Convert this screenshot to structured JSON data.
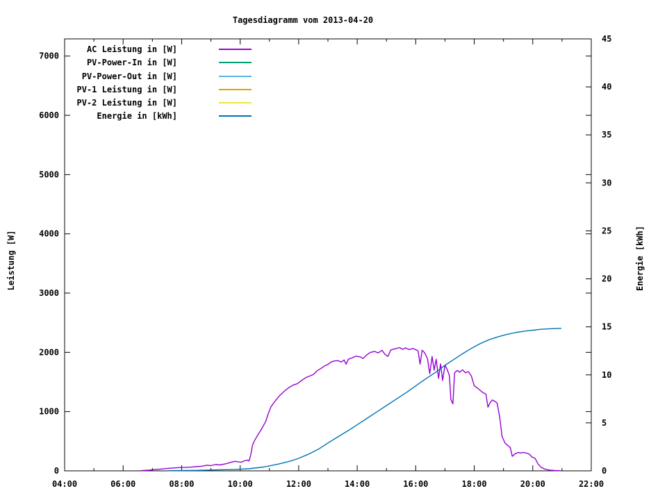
{
  "chart_data": {
    "type": "line",
    "title": "Tagesdiagramm vom 2013-04-20",
    "ylabel": "Leistung [W]",
    "y2label": "Energie [kWh]",
    "xrange": [
      4,
      22
    ],
    "ylim": [
      0,
      7290
    ],
    "y2lim": [
      0,
      45
    ],
    "grid": false,
    "legend_position": "top-left",
    "background": "#ffffff",
    "border_color": "#000000",
    "x_major_ticks": [
      {
        "t": 4,
        "label": "04:00"
      },
      {
        "t": 6,
        "label": "06:00"
      },
      {
        "t": 8,
        "label": "08:00"
      },
      {
        "t": 10,
        "label": "10:00"
      },
      {
        "t": 12,
        "label": "12:00"
      },
      {
        "t": 14,
        "label": "14:00"
      },
      {
        "t": 16,
        "label": "16:00"
      },
      {
        "t": 18,
        "label": "18:00"
      },
      {
        "t": 20,
        "label": "20:00"
      },
      {
        "t": 22,
        "label": "22:00"
      }
    ],
    "x_minor_ticks": [
      5,
      7,
      9,
      11,
      13,
      15,
      17,
      19,
      21
    ],
    "y_ticks": [
      {
        "v": 0,
        "label": "0"
      },
      {
        "v": 1000,
        "label": "1000"
      },
      {
        "v": 2000,
        "label": "2000"
      },
      {
        "v": 3000,
        "label": "3000"
      },
      {
        "v": 4000,
        "label": "4000"
      },
      {
        "v": 5000,
        "label": "5000"
      },
      {
        "v": 6000,
        "label": "6000"
      },
      {
        "v": 7000,
        "label": "7000"
      }
    ],
    "y2_ticks": [
      {
        "v": 0,
        "label": "0"
      },
      {
        "v": 5,
        "label": "5"
      },
      {
        "v": 10,
        "label": "10"
      },
      {
        "v": 15,
        "label": "15"
      },
      {
        "v": 20,
        "label": "20"
      },
      {
        "v": 25,
        "label": "25"
      },
      {
        "v": 30,
        "label": "30"
      },
      {
        "v": 35,
        "label": "35"
      },
      {
        "v": 40,
        "label": "40"
      },
      {
        "v": 45,
        "label": "45"
      }
    ],
    "series": [
      {
        "label": "AC Leistung in [W]",
        "color": "#9400d3",
        "axis": "y1",
        "points": [
          [
            6.6,
            3
          ],
          [
            6.9,
            12
          ],
          [
            7.1,
            22
          ],
          [
            7.3,
            30
          ],
          [
            7.5,
            40
          ],
          [
            7.7,
            48
          ],
          [
            7.9,
            55
          ],
          [
            8.1,
            58
          ],
          [
            8.3,
            62
          ],
          [
            8.5,
            70
          ],
          [
            8.7,
            78
          ],
          [
            8.85,
            95
          ],
          [
            9.0,
            88
          ],
          [
            9.15,
            105
          ],
          [
            9.3,
            100
          ],
          [
            9.5,
            118
          ],
          [
            9.7,
            145
          ],
          [
            9.82,
            160
          ],
          [
            9.95,
            150
          ],
          [
            10.05,
            148
          ],
          [
            10.15,
            170
          ],
          [
            10.25,
            180
          ],
          [
            10.3,
            165
          ],
          [
            10.36,
            260
          ],
          [
            10.42,
            430
          ],
          [
            10.48,
            500
          ],
          [
            10.55,
            560
          ],
          [
            10.62,
            620
          ],
          [
            10.7,
            680
          ],
          [
            10.78,
            750
          ],
          [
            10.87,
            830
          ],
          [
            10.95,
            950
          ],
          [
            11.05,
            1080
          ],
          [
            11.2,
            1180
          ],
          [
            11.35,
            1270
          ],
          [
            11.5,
            1340
          ],
          [
            11.65,
            1400
          ],
          [
            11.8,
            1445
          ],
          [
            11.95,
            1470
          ],
          [
            12.1,
            1525
          ],
          [
            12.25,
            1575
          ],
          [
            12.4,
            1605
          ],
          [
            12.5,
            1625
          ],
          [
            12.62,
            1685
          ],
          [
            12.75,
            1725
          ],
          [
            12.9,
            1775
          ],
          [
            13.0,
            1795
          ],
          [
            13.1,
            1835
          ],
          [
            13.22,
            1855
          ],
          [
            13.35,
            1860
          ],
          [
            13.45,
            1835
          ],
          [
            13.55,
            1870
          ],
          [
            13.62,
            1800
          ],
          [
            13.7,
            1885
          ],
          [
            13.82,
            1905
          ],
          [
            13.95,
            1935
          ],
          [
            14.1,
            1925
          ],
          [
            14.2,
            1895
          ],
          [
            14.32,
            1955
          ],
          [
            14.45,
            2000
          ],
          [
            14.6,
            2015
          ],
          [
            14.72,
            1990
          ],
          [
            14.85,
            2035
          ],
          [
            14.95,
            1965
          ],
          [
            15.05,
            1930
          ],
          [
            15.15,
            2040
          ],
          [
            15.3,
            2060
          ],
          [
            15.45,
            2080
          ],
          [
            15.55,
            2050
          ],
          [
            15.65,
            2075
          ],
          [
            15.78,
            2045
          ],
          [
            15.9,
            2065
          ],
          [
            16.0,
            2045
          ],
          [
            16.08,
            2025
          ],
          [
            16.15,
            1800
          ],
          [
            16.22,
            2035
          ],
          [
            16.3,
            1995
          ],
          [
            16.4,
            1900
          ],
          [
            16.48,
            1640
          ],
          [
            16.56,
            1930
          ],
          [
            16.63,
            1700
          ],
          [
            16.7,
            1885
          ],
          [
            16.78,
            1560
          ],
          [
            16.85,
            1805
          ],
          [
            16.92,
            1525
          ],
          [
            17.0,
            1785
          ],
          [
            17.08,
            1705
          ],
          [
            17.15,
            1605
          ],
          [
            17.2,
            1205
          ],
          [
            17.27,
            1130
          ],
          [
            17.33,
            1655
          ],
          [
            17.42,
            1695
          ],
          [
            17.5,
            1665
          ],
          [
            17.6,
            1705
          ],
          [
            17.7,
            1655
          ],
          [
            17.8,
            1675
          ],
          [
            17.9,
            1605
          ],
          [
            18.0,
            1435
          ],
          [
            18.1,
            1400
          ],
          [
            18.2,
            1360
          ],
          [
            18.3,
            1320
          ],
          [
            18.4,
            1295
          ],
          [
            18.47,
            1075
          ],
          [
            18.54,
            1150
          ],
          [
            18.62,
            1195
          ],
          [
            18.7,
            1175
          ],
          [
            18.78,
            1145
          ],
          [
            18.87,
            910
          ],
          [
            18.95,
            580
          ],
          [
            19.05,
            470
          ],
          [
            19.15,
            425
          ],
          [
            19.23,
            395
          ],
          [
            19.3,
            245
          ],
          [
            19.4,
            290
          ],
          [
            19.5,
            310
          ],
          [
            19.58,
            300
          ],
          [
            19.68,
            312
          ],
          [
            19.78,
            300
          ],
          [
            19.88,
            282
          ],
          [
            19.98,
            232
          ],
          [
            20.08,
            212
          ],
          [
            20.18,
            115
          ],
          [
            20.28,
            62
          ],
          [
            20.42,
            28
          ],
          [
            20.58,
            12
          ],
          [
            20.75,
            6
          ],
          [
            20.95,
            3
          ]
        ]
      },
      {
        "label": "PV-Power-In in [W]",
        "color": "#009e73",
        "axis": "y1",
        "points": []
      },
      {
        "label": "PV-Power-Out in [W]",
        "color": "#56b4e9",
        "axis": "y1",
        "points": []
      },
      {
        "label": "PV-1 Leistung in [W]",
        "color": "#e69f00",
        "axis": "y1",
        "points": []
      },
      {
        "label": "PV-2 Leistung in [W]",
        "color": "#f0e442",
        "axis": "y1",
        "points": []
      },
      {
        "label": "Energie in [kWh]",
        "color": "#0072b2",
        "axis": "y2",
        "points": [
          [
            7.55,
            0.02
          ],
          [
            8.5,
            0.05
          ],
          [
            9.2,
            0.1
          ],
          [
            9.8,
            0.14
          ],
          [
            10.3,
            0.22
          ],
          [
            10.8,
            0.4
          ],
          [
            11.3,
            0.7
          ],
          [
            11.7,
            1.0
          ],
          [
            12.0,
            1.3
          ],
          [
            12.35,
            1.75
          ],
          [
            12.7,
            2.3
          ],
          [
            13.0,
            2.9
          ],
          [
            13.35,
            3.55
          ],
          [
            13.7,
            4.2
          ],
          [
            14.0,
            4.8
          ],
          [
            14.35,
            5.5
          ],
          [
            14.7,
            6.2
          ],
          [
            15.0,
            6.8
          ],
          [
            15.35,
            7.5
          ],
          [
            15.7,
            8.2
          ],
          [
            16.0,
            8.85
          ],
          [
            16.35,
            9.6
          ],
          [
            16.7,
            10.3
          ],
          [
            17.0,
            11.0
          ],
          [
            17.3,
            11.6
          ],
          [
            17.6,
            12.2
          ],
          [
            17.9,
            12.75
          ],
          [
            18.2,
            13.25
          ],
          [
            18.5,
            13.65
          ],
          [
            18.8,
            13.95
          ],
          [
            19.1,
            14.2
          ],
          [
            19.4,
            14.4
          ],
          [
            19.7,
            14.55
          ],
          [
            20.0,
            14.65
          ],
          [
            20.3,
            14.75
          ],
          [
            20.6,
            14.8
          ],
          [
            20.98,
            14.85
          ]
        ]
      }
    ]
  }
}
